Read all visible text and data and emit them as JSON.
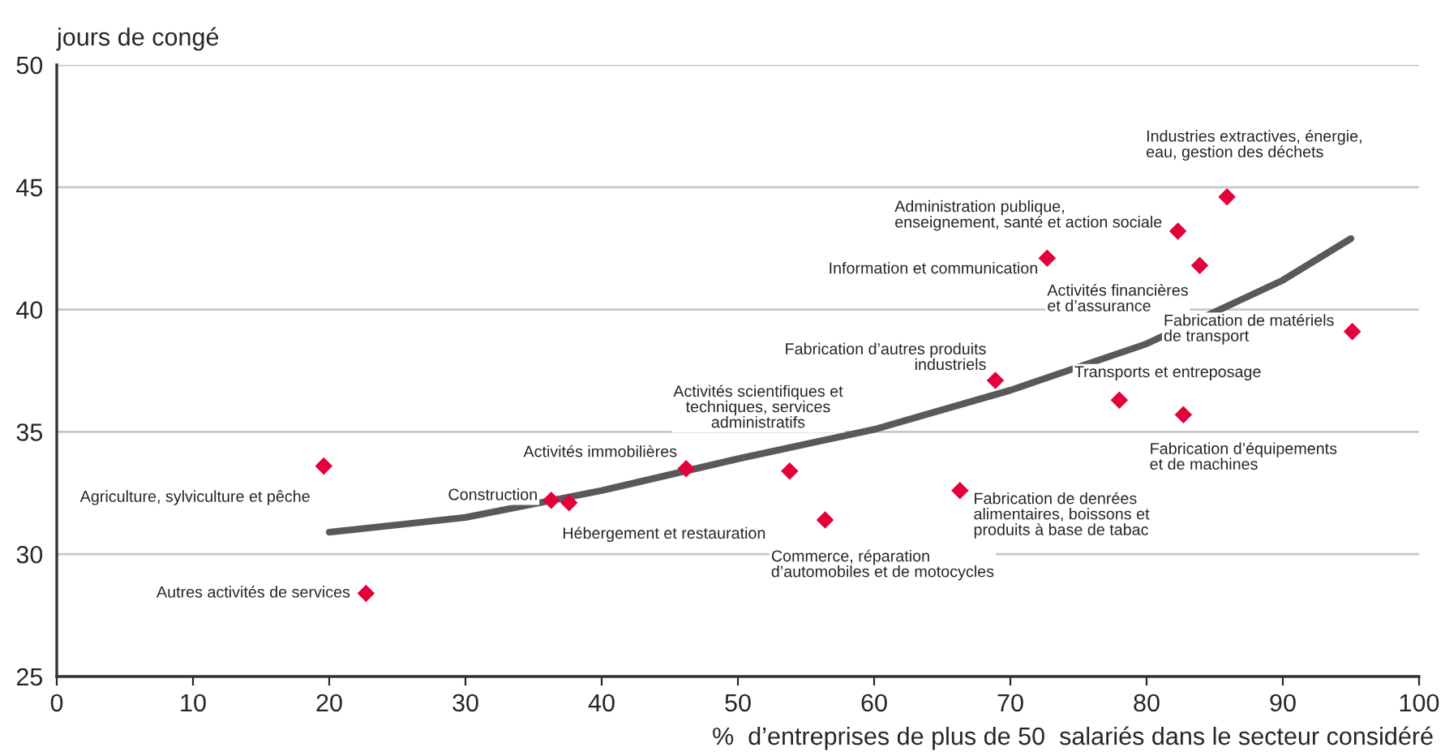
{
  "chart_data": {
    "type": "scatter",
    "ylabel": "jours de congé",
    "xlabel": "%  d’entreprises de plus de 50  salariés dans le secteur considéré",
    "xlim": [
      0,
      100
    ],
    "xticks": [
      0,
      10,
      20,
      30,
      40,
      50,
      60,
      70,
      80,
      90,
      100
    ],
    "ylim": [
      25,
      50
    ],
    "yticks": [
      25,
      30,
      35,
      40,
      45,
      50
    ],
    "grid": "y",
    "marker": "diamond",
    "legend": false,
    "series": [
      {
        "color": "#e4003a",
        "x": [
          19.6,
          22.7,
          36.3,
          37.6,
          46.2,
          53.8,
          56.4,
          66.3,
          68.9,
          72.7,
          78.0,
          82.3,
          82.7,
          83.9,
          85.9,
          95.1
        ],
        "values": [
          33.6,
          28.4,
          32.2,
          32.1,
          33.5,
          33.4,
          31.4,
          32.6,
          37.1,
          42.1,
          36.3,
          43.2,
          35.7,
          41.8,
          44.6,
          39.1
        ]
      },
      {
        "type": "line",
        "color": "#595959",
        "marker": "none",
        "line_style": "solid",
        "x": [
          20,
          30,
          40,
          50,
          60,
          70,
          80,
          90,
          95
        ],
        "values": [
          30.9,
          31.5,
          32.6,
          33.9,
          35.1,
          36.7,
          38.6,
          41.2,
          42.9
        ]
      }
    ],
    "annotations": [
      {
        "text": "Agriculture, sylviculture et pêche",
        "x": 19.6,
        "y": 33.6
      },
      {
        "text": "Autres activités de services",
        "x": 22.7,
        "y": 28.4
      },
      {
        "text": "Construction",
        "x": 36.3,
        "y": 32.2
      },
      {
        "text": "Hébergement et restauration",
        "x": 37.6,
        "y": 32.1
      },
      {
        "text": "Activités immobilières",
        "x": 46.2,
        "y": 33.5
      },
      {
        "text": "Activités scientifiques et\ntechniques, services\nadministratifs",
        "x": 53.8,
        "y": 33.4
      },
      {
        "text": "Commerce, réparation\nd’automobiles et de motocycles",
        "x": 56.4,
        "y": 31.4
      },
      {
        "text": "Fabrication de denrées\nalimentaires, boissons et\nproduits à base de tabac",
        "x": 66.3,
        "y": 32.6
      },
      {
        "text": "Fabrication d’autres produits\nindustriels",
        "x": 68.9,
        "y": 37.1
      },
      {
        "text": "Information et communication",
        "x": 72.7,
        "y": 42.1
      },
      {
        "text": "Transports et entreposage",
        "x": 78.0,
        "y": 36.3
      },
      {
        "text": "Administration publique,\nenseignement, santé et action sociale",
        "x": 82.3,
        "y": 43.2
      },
      {
        "text": "Fabrication d’équipements\net de machines",
        "x": 82.7,
        "y": 35.7
      },
      {
        "text": "Activités financières\net d’assurance",
        "x": 83.9,
        "y": 41.8
      },
      {
        "text": "Industries extractives, énergie,\neau, gestion des déchets",
        "x": 85.9,
        "y": 44.6
      },
      {
        "text": "Fabrication de matériels\nde transport",
        "x": 95.1,
        "y": 39.1
      }
    ]
  }
}
